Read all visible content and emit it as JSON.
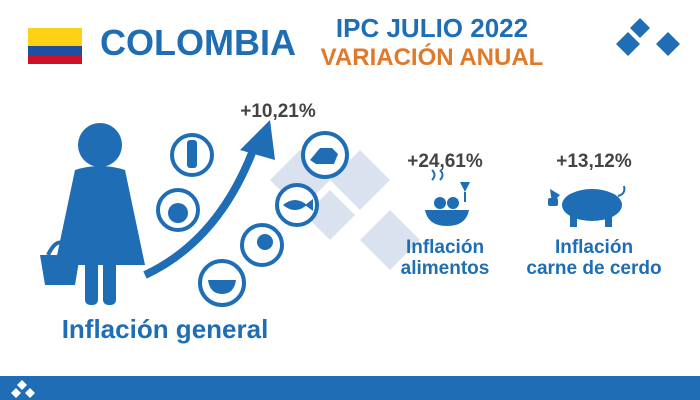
{
  "header": {
    "country": "COLOMBIA",
    "title": "IPC JULIO 2022",
    "subtitle": "VARIACIÓN ANUAL"
  },
  "stats": [
    {
      "value": "+10,21%",
      "label": [
        "Inflación general"
      ]
    },
    {
      "value": "+24,61%",
      "label": [
        "Inflación",
        "alimentos"
      ]
    },
    {
      "value": "+13,12%",
      "label": [
        "Inflación",
        "carne de cerdo"
      ]
    }
  ]
}
